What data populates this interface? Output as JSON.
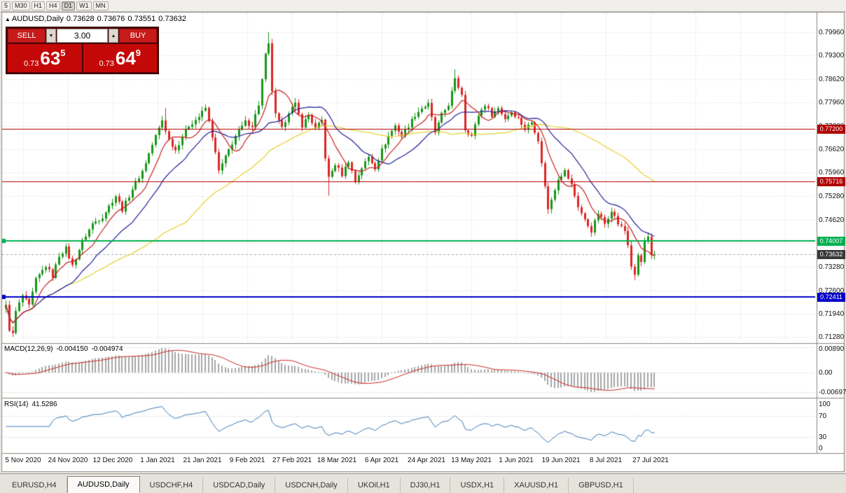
{
  "toolbar": {
    "timeframes": [
      "5",
      "M30",
      "H1",
      "H4",
      "D1",
      "W1",
      "MN"
    ],
    "active": "D1"
  },
  "chart_header": {
    "marker": "▲",
    "symbol": "AUDUSD,Daily",
    "open": "0.73628",
    "high": "0.73676",
    "low": "0.73551",
    "close": "0.73632"
  },
  "trade_panel": {
    "sell_label": "SELL",
    "buy_label": "BUY",
    "volume": "3.00",
    "caret_down": "▼",
    "caret_up": "▲",
    "sell_price": {
      "prefix": "0.73",
      "big": "63",
      "sup": "5"
    },
    "buy_price": {
      "prefix": "0.73",
      "big": "64",
      "sup": "9"
    }
  },
  "price_axis": {
    "labels": [
      "0.79960",
      "0.79300",
      "0.78620",
      "0.77960",
      "0.77280",
      "0.76620",
      "0.75960",
      "0.75280",
      "0.74620",
      "0.73960",
      "0.73280",
      "0.72600",
      "0.71940",
      "0.71280"
    ]
  },
  "time_axis": {
    "labels": [
      "5 Nov 2020",
      "24 Nov 2020",
      "12 Dec 2020",
      "1 Jan 2021",
      "21 Jan 2021",
      "9 Feb 2021",
      "27 Feb 2021",
      "18 Mar 2021",
      "6 Apr 2021",
      "24 Apr 2021",
      "13 May 2021",
      "1 Jun 2021",
      "19 Jun 2021",
      "8 Jul 2021",
      "27 Jul 2021"
    ]
  },
  "levels": [
    {
      "value": 0.772,
      "label": "0.77200",
      "color": "#b00000",
      "width": 1
    },
    {
      "value": 0.75716,
      "label": "0.75716",
      "color": "#b00000",
      "width": 1
    },
    {
      "value": 0.74007,
      "label": "0.74007",
      "color": "#00b050",
      "width": 2
    },
    {
      "value": 0.72411,
      "label": "0.72411",
      "color": "#0000c8",
      "width": 2
    }
  ],
  "current_price": {
    "value": 0.73632,
    "label": "0.73632",
    "tag_color": "#383838"
  },
  "indicators": {
    "macd": {
      "title": "MACD(12,26,9)",
      "value_main": "-0.004150",
      "value_signal": "-0.004974",
      "axis": [
        {
          "label": "0.00890",
          "value": 0.0089
        },
        {
          "label": "0.00",
          "value": 0
        },
        {
          "label": "-0.00697",
          "value": -0.00697
        }
      ],
      "hist_color": "#a8a8a8",
      "signal_color": "#cc2222"
    },
    "rsi": {
      "title": "RSI(14)",
      "value": "41.5286",
      "axis": [
        {
          "label": "100",
          "value": 100
        },
        {
          "label": "70",
          "value": 70
        },
        {
          "label": "30",
          "value": 30
        },
        {
          "label": "0",
          "value": 0
        }
      ],
      "levels": [
        70,
        30
      ],
      "color": "#3c78b4"
    }
  },
  "tabs": [
    {
      "label": "EURUSD,H4"
    },
    {
      "label": "AUDUSD,Daily",
      "active": true
    },
    {
      "label": "USDCHF,H4"
    },
    {
      "label": "USDCAD,Daily"
    },
    {
      "label": "USDCNH,Daily"
    },
    {
      "label": "UKOil,H1"
    },
    {
      "label": "DJ30,H1"
    },
    {
      "label": "USDX,H1"
    },
    {
      "label": "XAUUSD,H1"
    },
    {
      "label": "GBPUSD,H1"
    }
  ],
  "colors": {
    "bull": "#189618",
    "bear": "#dd2626",
    "ma_fast": "#c82020",
    "ma_mid": "#20209c",
    "ma_slow": "#e6d22e",
    "grid": "#d8d8d8",
    "panel_border": "#8a8680",
    "bid_line": "#a8a8a8"
  },
  "chart_data": {
    "type": "candlestick",
    "symbol": "AUDUSD",
    "period": "Daily",
    "bars": 196,
    "ohlc_current": {
      "open": 0.73628,
      "high": 0.73676,
      "low": 0.73551,
      "close": 0.73632
    },
    "ylim": [
      0.7108,
      0.8052
    ],
    "close_waypoints": [
      [
        0,
        0.7215
      ],
      [
        1,
        0.715
      ],
      [
        2,
        0.7135
      ],
      [
        3,
        0.72
      ],
      [
        5,
        0.7245
      ],
      [
        7,
        0.7215
      ],
      [
        9,
        0.729
      ],
      [
        12,
        0.733
      ],
      [
        14,
        0.73
      ],
      [
        16,
        0.736
      ],
      [
        18,
        0.738
      ],
      [
        20,
        0.733
      ],
      [
        23,
        0.74
      ],
      [
        26,
        0.745
      ],
      [
        29,
        0.747
      ],
      [
        31,
        0.75
      ],
      [
        33,
        0.753
      ],
      [
        35,
        0.749
      ],
      [
        38,
        0.755
      ],
      [
        41,
        0.76
      ],
      [
        43,
        0.765
      ],
      [
        45,
        0.77
      ],
      [
        47,
        0.7745
      ],
      [
        49,
        0.769
      ],
      [
        51,
        0.766
      ],
      [
        53,
        0.77
      ],
      [
        55,
        0.773
      ],
      [
        58,
        0.7755
      ],
      [
        60,
        0.778
      ],
      [
        62,
        0.77
      ],
      [
        64,
        0.76
      ],
      [
        66,
        0.764
      ],
      [
        69,
        0.77
      ],
      [
        72,
        0.774
      ],
      [
        74,
        0.773
      ],
      [
        76,
        0.779
      ],
      [
        77,
        0.786
      ],
      [
        78,
        0.793
      ],
      [
        79,
        0.796
      ],
      [
        80,
        0.783
      ],
      [
        81,
        0.776
      ],
      [
        83,
        0.772
      ],
      [
        85,
        0.777
      ],
      [
        87,
        0.779
      ],
      [
        89,
        0.773
      ],
      [
        91,
        0.776
      ],
      [
        93,
        0.772
      ],
      [
        95,
        0.7745
      ],
      [
        96,
        0.764
      ],
      [
        97,
        0.758
      ],
      [
        99,
        0.762
      ],
      [
        101,
        0.759
      ],
      [
        103,
        0.763
      ],
      [
        105,
        0.757
      ],
      [
        107,
        0.761
      ],
      [
        109,
        0.764
      ],
      [
        111,
        0.761
      ],
      [
        113,
        0.766
      ],
      [
        115,
        0.77
      ],
      [
        117,
        0.773
      ],
      [
        119,
        0.77
      ],
      [
        121,
        0.773
      ],
      [
        123,
        0.776
      ],
      [
        125,
        0.778
      ],
      [
        127,
        0.779
      ],
      [
        129,
        0.771
      ],
      [
        131,
        0.776
      ],
      [
        133,
        0.779
      ],
      [
        135,
        0.786
      ],
      [
        137,
        0.782
      ],
      [
        138,
        0.772
      ],
      [
        140,
        0.77
      ],
      [
        142,
        0.776
      ],
      [
        144,
        0.779
      ],
      [
        146,
        0.776
      ],
      [
        148,
        0.778
      ],
      [
        150,
        0.775
      ],
      [
        152,
        0.777
      ],
      [
        154,
        0.775
      ],
      [
        156,
        0.772
      ],
      [
        158,
        0.774
      ],
      [
        160,
        0.769
      ],
      [
        161,
        0.762
      ],
      [
        162,
        0.756
      ],
      [
        163,
        0.749
      ],
      [
        164,
        0.752
      ],
      [
        166,
        0.758
      ],
      [
        168,
        0.76
      ],
      [
        170,
        0.756
      ],
      [
        172,
        0.75
      ],
      [
        174,
        0.746
      ],
      [
        176,
        0.743
      ],
      [
        178,
        0.748
      ],
      [
        180,
        0.745
      ],
      [
        182,
        0.749
      ],
      [
        184,
        0.745
      ],
      [
        186,
        0.743
      ],
      [
        187,
        0.739
      ],
      [
        188,
        0.733
      ],
      [
        189,
        0.73
      ],
      [
        190,
        0.736
      ],
      [
        191,
        0.734
      ],
      [
        192,
        0.74
      ],
      [
        193,
        0.741
      ],
      [
        194,
        0.736
      ],
      [
        195,
        0.73632
      ]
    ],
    "extremes": {
      "2": {
        "low": 0.7128
      },
      "48": {
        "high": 0.778
      },
      "79": {
        "high": 0.7996
      },
      "97": {
        "low": 0.753
      },
      "135": {
        "high": 0.789
      },
      "163": {
        "low": 0.7478
      },
      "189": {
        "low": 0.7289
      },
      "193": {
        "high": 0.7425
      }
    },
    "moving_averages": [
      {
        "period": 8,
        "color": "#c82020"
      },
      {
        "period": 20,
        "color": "#20209c"
      },
      {
        "period": 55,
        "color": "#e6d22e"
      }
    ],
    "horizontal_levels": [
      0.772,
      0.75716,
      0.74007,
      0.72411
    ],
    "macd": {
      "fast": 12,
      "slow": 26,
      "signal": 9,
      "current_main": -0.00415,
      "current_signal": -0.004974
    },
    "rsi": {
      "period": 14,
      "current": 41.5286
    }
  }
}
